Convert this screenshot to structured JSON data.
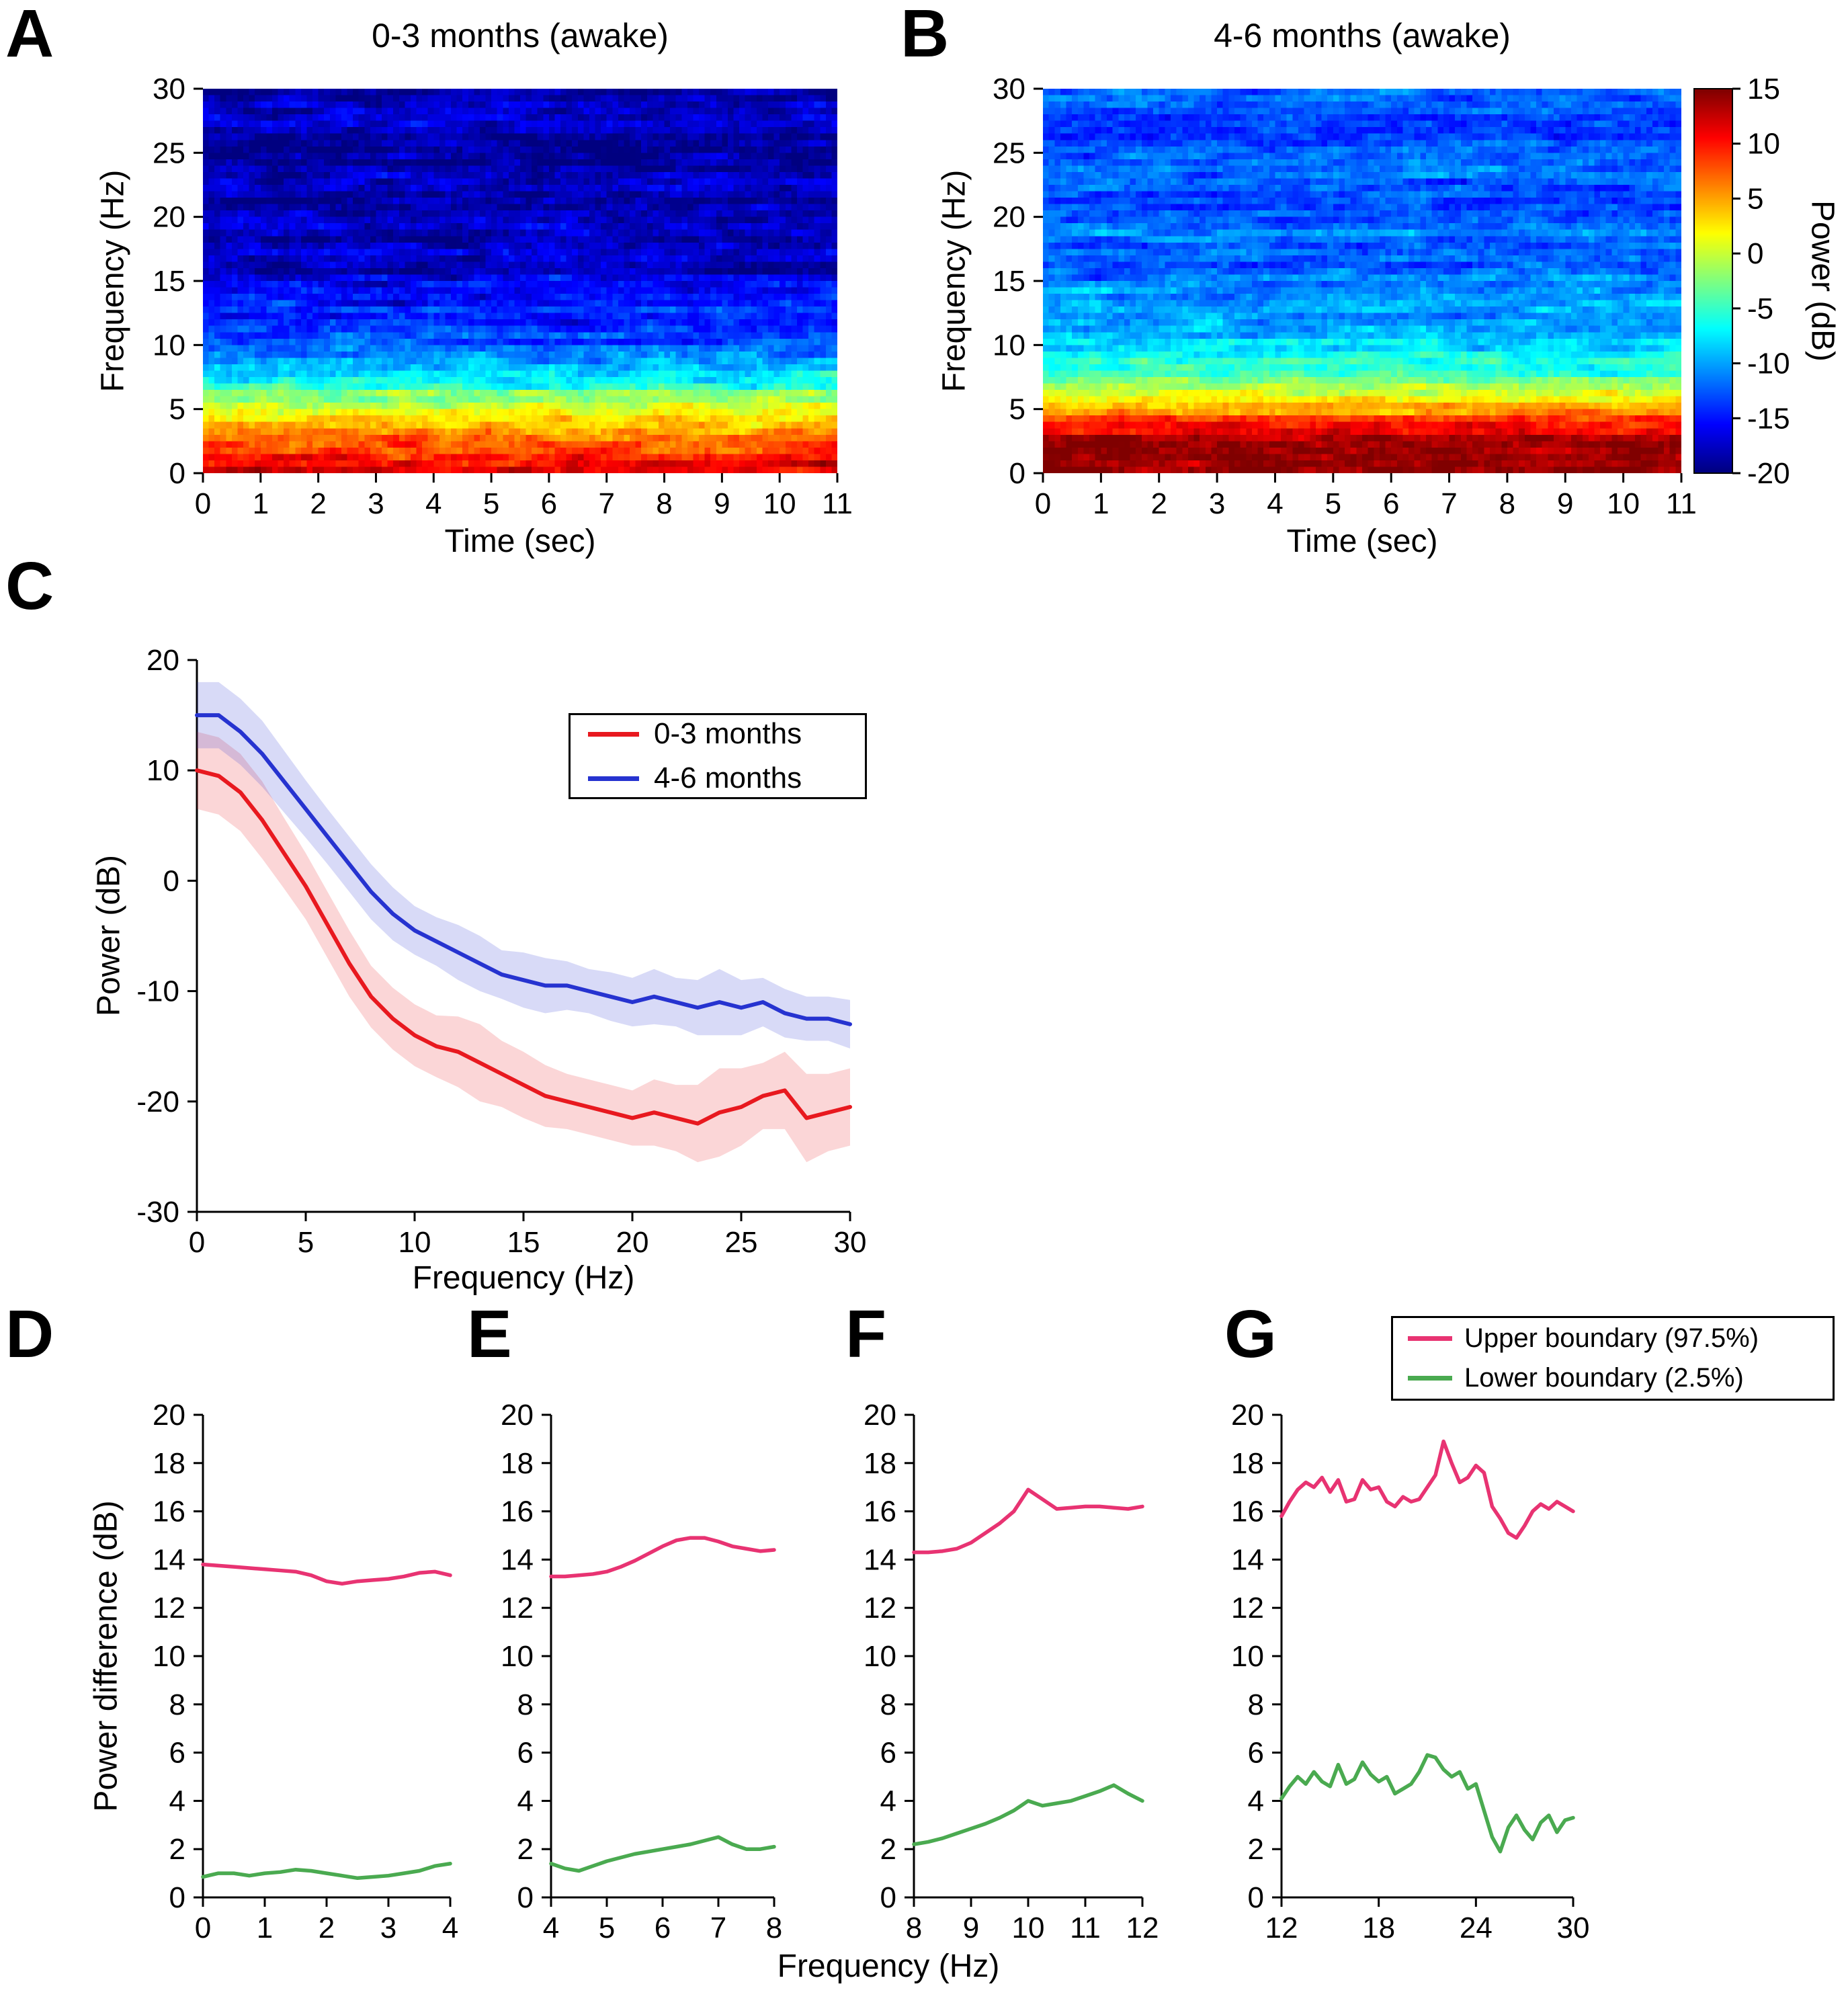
{
  "panels": {
    "A": {
      "letter": "A"
    },
    "B": {
      "letter": "B"
    },
    "C": {
      "letter": "C"
    },
    "D": {
      "letter": "D"
    },
    "E": {
      "letter": "E"
    },
    "F": {
      "letter": "F"
    },
    "G": {
      "letter": "G"
    }
  },
  "shared": {
    "xlabel": "Frequency (Hz)",
    "ylabel": "Power difference (dB)"
  },
  "colorbar": {
    "label": "Power (dB)",
    "min": -20,
    "max": 15,
    "ticks": [
      15,
      10,
      5,
      0,
      -5,
      -10,
      -15,
      -20
    ]
  },
  "colors": {
    "red_line": "#e8191f",
    "blue_line": "#2633d0",
    "pink_line": "#e83372",
    "green_line": "#4aaa50",
    "axis": "#000000"
  },
  "chart_data": [
    {
      "id": "A",
      "type": "heatmap",
      "title": "0-3 months (awake)",
      "xlabel": "Time (sec)",
      "ylabel": "Frequency (Hz)",
      "xlim": [
        0,
        11
      ],
      "ylim": [
        0,
        30
      ],
      "x_ticks": [
        0,
        1,
        2,
        3,
        4,
        5,
        6,
        7,
        8,
        9,
        10,
        11
      ],
      "y_ticks": [
        0,
        5,
        10,
        15,
        20,
        25,
        30
      ],
      "clim": [
        -20,
        15
      ],
      "colormap": "jet",
      "freq_profile": {
        "f": [
          0,
          1,
          2,
          3,
          4,
          5,
          6,
          7,
          8,
          10,
          12,
          15,
          20,
          30
        ],
        "power": [
          12,
          11,
          8.5,
          6.5,
          4.5,
          1,
          -2,
          -6.5,
          -10,
          -13,
          -15,
          -17,
          -18.5,
          -19
        ]
      },
      "noise_sd": 2.2
    },
    {
      "id": "B",
      "type": "heatmap",
      "title": "4-6 months (awake)",
      "xlabel": "Time (sec)",
      "ylabel": "Frequency (Hz)",
      "xlim": [
        0,
        11
      ],
      "ylim": [
        0,
        30
      ],
      "x_ticks": [
        0,
        1,
        2,
        3,
        4,
        5,
        6,
        7,
        8,
        9,
        10,
        11
      ],
      "y_ticks": [
        0,
        5,
        10,
        15,
        20,
        25,
        30
      ],
      "clim": [
        -20,
        15
      ],
      "colormap": "jet",
      "freq_profile": {
        "f": [
          0,
          1,
          2,
          3,
          4,
          5,
          6,
          7,
          8,
          10,
          12,
          15,
          20,
          25,
          30
        ],
        "power": [
          15,
          15,
          14,
          11.5,
          8.5,
          3,
          0.5,
          -2,
          -5,
          -8,
          -9.5,
          -10.5,
          -12,
          -12.5,
          -13
        ]
      },
      "noise_sd": 2.0
    },
    {
      "id": "C",
      "type": "line",
      "xlabel": "Frequency (Hz)",
      "ylabel": "Power (dB)",
      "xlim": [
        0,
        30
      ],
      "ylim": [
        -30,
        20
      ],
      "x_ticks": [
        0,
        5,
        10,
        15,
        20,
        25,
        30
      ],
      "y_ticks": [
        20,
        10,
        0,
        -10,
        -20,
        -30
      ],
      "line_width": 6,
      "band_opacity": 0.18,
      "series": [
        {
          "name": "0-3 months",
          "color": "#e8191f",
          "x": [
            0,
            1,
            2,
            3,
            4,
            5,
            6,
            7,
            8,
            9,
            10,
            11,
            12,
            13,
            14,
            15,
            16,
            17,
            18,
            19,
            20,
            21,
            22,
            23,
            24,
            25,
            26,
            27,
            28,
            29,
            30
          ],
          "y": [
            10,
            9.5,
            8,
            5.5,
            2.5,
            -0.5,
            -4,
            -7.5,
            -10.5,
            -12.5,
            -14,
            -15,
            -15.5,
            -16.5,
            -17.5,
            -18.5,
            -19.5,
            -20,
            -20.5,
            -21,
            -21.5,
            -21,
            -21.5,
            -22,
            -21,
            -20.5,
            -19.5,
            -19,
            -21.5,
            -21,
            -20.5
          ],
          "band": [
            3.5,
            3.5,
            3.5,
            3.5,
            3.2,
            3.0,
            3.0,
            3.0,
            2.8,
            2.8,
            2.8,
            2.8,
            3.2,
            3.5,
            3.0,
            3.0,
            2.8,
            2.5,
            2.5,
            2.5,
            2.5,
            3.0,
            3.0,
            3.5,
            4.0,
            3.5,
            3.0,
            3.5,
            4.0,
            3.5,
            3.5
          ]
        },
        {
          "name": "4-6 months",
          "color": "#2633d0",
          "x": [
            0,
            1,
            2,
            3,
            4,
            5,
            6,
            7,
            8,
            9,
            10,
            11,
            12,
            13,
            14,
            15,
            16,
            17,
            18,
            19,
            20,
            21,
            22,
            23,
            24,
            25,
            26,
            27,
            28,
            29,
            30
          ],
          "y": [
            15,
            15,
            13.5,
            11.5,
            9,
            6.5,
            4,
            1.5,
            -1,
            -3,
            -4.5,
            -5.5,
            -6.5,
            -7.5,
            -8.5,
            -9,
            -9.5,
            -9.5,
            -10,
            -10.5,
            -11,
            -10.5,
            -11,
            -11.5,
            -11,
            -11.5,
            -11,
            -12,
            -12.5,
            -12.5,
            -13
          ],
          "band": [
            3.0,
            3.0,
            3.0,
            3.0,
            2.8,
            2.6,
            2.5,
            2.5,
            2.5,
            2.4,
            2.2,
            2.2,
            2.5,
            2.5,
            2.2,
            2.5,
            2.5,
            2.2,
            2.0,
            2.2,
            2.2,
            2.5,
            2.2,
            2.5,
            3.0,
            2.5,
            2.2,
            2.2,
            2.0,
            2.0,
            2.2
          ]
        }
      ]
    },
    {
      "id": "D",
      "type": "line",
      "xlim": [
        0,
        4
      ],
      "ylim": [
        0,
        20
      ],
      "x_ticks": [
        0,
        1,
        2,
        3,
        4
      ],
      "y_ticks": [
        0,
        2,
        4,
        6,
        8,
        10,
        12,
        14,
        16,
        18,
        20
      ],
      "line_width": 5.5,
      "series": [
        {
          "name": "Upper boundary (97.5%)",
          "color": "#e83372",
          "x": [
            0,
            0.25,
            0.5,
            0.75,
            1,
            1.25,
            1.5,
            1.75,
            2,
            2.25,
            2.5,
            2.75,
            3,
            3.25,
            3.5,
            3.75,
            4
          ],
          "y": [
            13.8,
            13.75,
            13.7,
            13.65,
            13.6,
            13.55,
            13.5,
            13.35,
            13.1,
            13.0,
            13.1,
            13.15,
            13.2,
            13.3,
            13.45,
            13.5,
            13.35
          ]
        },
        {
          "name": "Lower boundary (2.5%)",
          "color": "#4aaa50",
          "x": [
            0,
            0.25,
            0.5,
            0.75,
            1,
            1.25,
            1.5,
            1.75,
            2,
            2.25,
            2.5,
            2.75,
            3,
            3.25,
            3.5,
            3.75,
            4
          ],
          "y": [
            0.85,
            1.0,
            1.0,
            0.9,
            1.0,
            1.05,
            1.15,
            1.1,
            1.0,
            0.9,
            0.8,
            0.85,
            0.9,
            1.0,
            1.1,
            1.3,
            1.4
          ]
        }
      ]
    },
    {
      "id": "E",
      "type": "line",
      "xlim": [
        4,
        8
      ],
      "ylim": [
        0,
        20
      ],
      "x_ticks": [
        4,
        5,
        6,
        7,
        8
      ],
      "y_ticks": [
        0,
        2,
        4,
        6,
        8,
        10,
        12,
        14,
        16,
        18,
        20
      ],
      "line_width": 5.5,
      "series": [
        {
          "name": "Upper boundary (97.5%)",
          "color": "#e83372",
          "x": [
            4,
            4.25,
            4.5,
            4.75,
            5,
            5.25,
            5.5,
            5.75,
            6,
            6.25,
            6.5,
            6.75,
            7,
            7.25,
            7.5,
            7.75,
            8
          ],
          "y": [
            13.3,
            13.3,
            13.35,
            13.4,
            13.5,
            13.7,
            13.95,
            14.25,
            14.55,
            14.8,
            14.9,
            14.9,
            14.75,
            14.55,
            14.45,
            14.35,
            14.4
          ]
        },
        {
          "name": "Lower boundary (2.5%)",
          "color": "#4aaa50",
          "x": [
            4,
            4.25,
            4.5,
            4.75,
            5,
            5.25,
            5.5,
            5.75,
            6,
            6.25,
            6.5,
            6.75,
            7,
            7.25,
            7.5,
            7.75,
            8
          ],
          "y": [
            1.4,
            1.2,
            1.1,
            1.3,
            1.5,
            1.65,
            1.8,
            1.9,
            2.0,
            2.1,
            2.2,
            2.35,
            2.5,
            2.2,
            2.0,
            2.0,
            2.1
          ]
        }
      ]
    },
    {
      "id": "F",
      "type": "line",
      "xlim": [
        8,
        12
      ],
      "ylim": [
        0,
        20
      ],
      "x_ticks": [
        8,
        9,
        10,
        11,
        12
      ],
      "y_ticks": [
        0,
        2,
        4,
        6,
        8,
        10,
        12,
        14,
        16,
        18,
        20
      ],
      "line_width": 5.5,
      "series": [
        {
          "name": "Upper boundary (97.5%)",
          "color": "#e83372",
          "x": [
            8,
            8.25,
            8.5,
            8.75,
            9,
            9.25,
            9.5,
            9.75,
            10,
            10.25,
            10.5,
            10.75,
            11,
            11.25,
            11.5,
            11.75,
            12
          ],
          "y": [
            14.3,
            14.3,
            14.35,
            14.45,
            14.7,
            15.1,
            15.5,
            16.0,
            16.9,
            16.5,
            16.1,
            16.15,
            16.2,
            16.2,
            16.15,
            16.1,
            16.2
          ]
        },
        {
          "name": "Lower boundary (2.5%)",
          "color": "#4aaa50",
          "x": [
            8,
            8.25,
            8.5,
            8.75,
            9,
            9.25,
            9.5,
            9.75,
            10,
            10.25,
            10.5,
            10.75,
            11,
            11.25,
            11.5,
            11.75,
            12
          ],
          "y": [
            2.2,
            2.3,
            2.45,
            2.65,
            2.85,
            3.05,
            3.3,
            3.6,
            4.0,
            3.8,
            3.9,
            4.0,
            4.2,
            4.4,
            4.65,
            4.3,
            4.0
          ]
        }
      ]
    },
    {
      "id": "G",
      "type": "line",
      "xlim": [
        12,
        30
      ],
      "ylim": [
        0,
        20
      ],
      "x_ticks": [
        12,
        18,
        24,
        30
      ],
      "y_ticks": [
        0,
        2,
        4,
        6,
        8,
        10,
        12,
        14,
        16,
        18,
        20
      ],
      "line_width": 5.5,
      "series": [
        {
          "name": "Upper boundary (97.5%)",
          "color": "#e83372",
          "x": [
            12,
            12.5,
            13,
            13.5,
            14,
            14.5,
            15,
            15.5,
            16,
            16.5,
            17,
            17.5,
            18,
            18.5,
            19,
            19.5,
            20,
            20.5,
            21,
            21.5,
            22,
            22.5,
            23,
            23.5,
            24,
            24.5,
            25,
            25.5,
            26,
            26.5,
            27,
            27.5,
            28,
            28.5,
            29,
            29.5,
            30
          ],
          "y": [
            15.8,
            16.4,
            16.9,
            17.2,
            17.0,
            17.4,
            16.8,
            17.3,
            16.4,
            16.5,
            17.3,
            16.9,
            17.0,
            16.4,
            16.2,
            16.6,
            16.4,
            16.5,
            17.0,
            17.5,
            18.9,
            18.0,
            17.2,
            17.4,
            17.9,
            17.6,
            16.2,
            15.7,
            15.1,
            14.9,
            15.4,
            16.0,
            16.3,
            16.1,
            16.4,
            16.2,
            16.0
          ]
        },
        {
          "name": "Lower boundary (2.5%)",
          "color": "#4aaa50",
          "x": [
            12,
            12.5,
            13,
            13.5,
            14,
            14.5,
            15,
            15.5,
            16,
            16.5,
            17,
            17.5,
            18,
            18.5,
            19,
            19.5,
            20,
            20.5,
            21,
            21.5,
            22,
            22.5,
            23,
            23.5,
            24,
            24.5,
            25,
            25.5,
            26,
            26.5,
            27,
            27.5,
            28,
            28.5,
            29,
            29.5,
            30
          ],
          "y": [
            4.1,
            4.6,
            5.0,
            4.7,
            5.2,
            4.8,
            4.6,
            5.5,
            4.7,
            4.9,
            5.6,
            5.1,
            4.8,
            5.0,
            4.3,
            4.5,
            4.7,
            5.2,
            5.9,
            5.8,
            5.3,
            5.0,
            5.2,
            4.5,
            4.7,
            3.6,
            2.5,
            1.9,
            2.9,
            3.4,
            2.8,
            2.4,
            3.1,
            3.4,
            2.7,
            3.2,
            3.3
          ]
        }
      ]
    }
  ]
}
